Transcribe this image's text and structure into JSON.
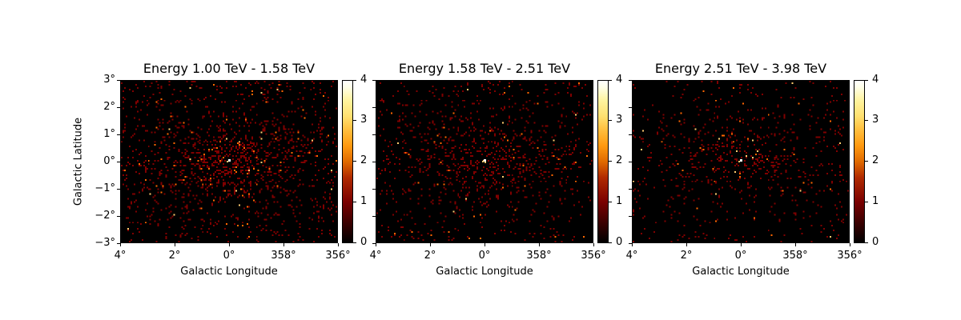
{
  "chart_data": [
    {
      "type": "heatmap",
      "title": "Energy 1.00 TeV - 1.58 TeV",
      "xlabel": "Galactic Longitude",
      "ylabel": "Galactic Latitude",
      "xticks": [
        "4°",
        "2°",
        "0°",
        "358°",
        "356°"
      ],
      "yticks": [
        "3°",
        "2°",
        "1°",
        "0°",
        "−1°",
        "−2°",
        "−3°"
      ],
      "xlim": [
        4,
        -4
      ],
      "ylim": [
        -3,
        3
      ],
      "colormap": "afmhot",
      "colorbar": {
        "ticks": [
          "0",
          "1",
          "2",
          "3",
          "4"
        ],
        "range": [
          0,
          4
        ]
      },
      "description": "Sparse counts map; events concentrated near Galactic center (0°,0°), brightest pixel near 0°,0°",
      "density": 1.0
    },
    {
      "type": "heatmap",
      "title": "Energy 1.58 TeV - 2.51 TeV",
      "xlabel": "Galactic Longitude",
      "ylabel": "",
      "xticks": [
        "4°",
        "2°",
        "0°",
        "358°",
        "356°"
      ],
      "yticks": [],
      "xlim": [
        4,
        -4
      ],
      "ylim": [
        -3,
        3
      ],
      "colormap": "afmhot",
      "colorbar": {
        "ticks": [
          "0",
          "1",
          "2",
          "3",
          "4"
        ],
        "range": [
          0,
          4
        ]
      },
      "description": "Sparser counts map; concentration along plane near Galactic center",
      "density": 0.7
    },
    {
      "type": "heatmap",
      "title": "Energy 2.51 TeV - 3.98 TeV",
      "xlabel": "Galactic Longitude",
      "ylabel": "",
      "xticks": [
        "4°",
        "2°",
        "0°",
        "358°",
        "356°"
      ],
      "yticks": [],
      "xlim": [
        4,
        -4
      ],
      "ylim": [
        -3,
        3
      ],
      "colormap": "afmhot",
      "colorbar": {
        "ticks": [
          "0",
          "1",
          "2",
          "3",
          "4"
        ],
        "range": [
          0,
          4
        ]
      },
      "description": "Sparsest counts map; faint concentration near Galactic center",
      "density": 0.5
    }
  ],
  "panels": [
    {
      "title": "Energy 1.00 TeV - 1.58 TeV",
      "xlabel": "Galactic Longitude",
      "ylabel": "Galactic Latitude"
    },
    {
      "title": "Energy 1.58 TeV - 2.51 TeV",
      "xlabel": "Galactic Longitude",
      "ylabel": ""
    },
    {
      "title": "Energy 2.51 TeV - 3.98 TeV",
      "xlabel": "Galactic Longitude",
      "ylabel": ""
    }
  ],
  "xticks": [
    "4°",
    "2°",
    "0°",
    "358°",
    "356°"
  ],
  "yticks": [
    "3°",
    "2°",
    "1°",
    "0°",
    "−1°",
    "−2°",
    "−3°"
  ],
  "cbticks": [
    "0",
    "1",
    "2",
    "3",
    "4"
  ]
}
